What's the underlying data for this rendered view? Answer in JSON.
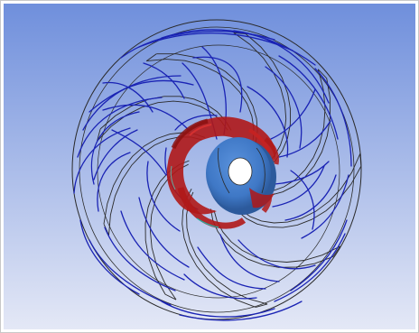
{
  "scene": {
    "background_top": "#6f8fdc",
    "background_bottom": "#e4e8f6",
    "wireframe_color": "#2a2a2a",
    "streamline_color": "#1a23b4",
    "hub_color": "#3f78c6",
    "hub_shadow_color": "#2c5a9c",
    "recirculation_color": "#b01818",
    "blade_count": 9
  }
}
